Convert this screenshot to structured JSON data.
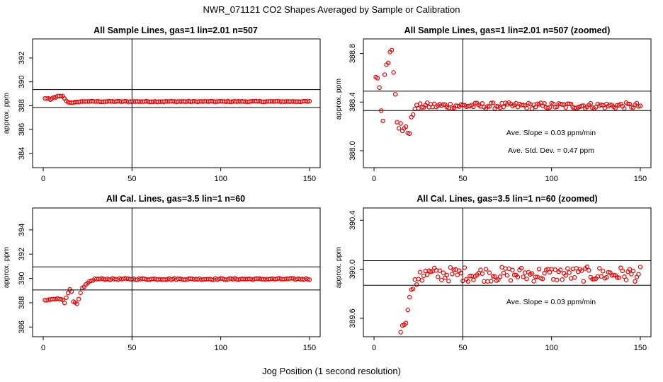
{
  "figure": {
    "title": "NWR_071121  CO2 Shapes Averaged by Sample or Calibration",
    "xlabel": "Jog Position (1 second resolution)",
    "point_color": "#ee0000",
    "line_color": "#000000"
  },
  "chart_data": [
    {
      "type": "scatter",
      "title": "All Sample Lines, gas=1 lin=2.01 n=507",
      "ylabel": "approx. ppm",
      "xlim": [
        -6,
        156
      ],
      "ylim": [
        382.8,
        393.6
      ],
      "xticks": [
        0,
        50,
        100,
        150
      ],
      "xtick_labels": [
        "0",
        "50",
        "100",
        "150"
      ],
      "yticks": [
        384,
        386,
        388,
        390,
        392
      ],
      "ytick_labels": [
        "384",
        "386",
        "388",
        "390",
        "392"
      ],
      "hlines": [
        389.35,
        387.85
      ],
      "vline": 50,
      "annotations": [],
      "series": [
        {
          "name": "sample",
          "x": [],
          "y": [],
          "pattern": {
            "x_start": 1,
            "x_end": 150,
            "plateau": 388.35,
            "early": [
              388.6,
              388.6,
              388.6,
              388.5,
              388.6,
              388.7,
              388.7,
              388.8,
              388.8,
              388.8,
              388.8,
              388.6,
              388.4,
              388.3,
              388.25,
              388.25,
              388.25,
              388.3,
              388.3,
              388.3,
              388.35,
              388.35,
              388.35,
              388.35,
              388.35,
              388.35
            ],
            "noise": 0.03
          }
        }
      ]
    },
    {
      "type": "scatter",
      "title": "All Sample Lines, gas=1 lin=2.01 n=507 (zoomed)",
      "ylabel": "approx. ppm",
      "xlim": [
        -6,
        156
      ],
      "ylim": [
        387.86,
        388.92
      ],
      "xticks": [
        0,
        50,
        100,
        150
      ],
      "xtick_labels": [
        "0",
        "50",
        "100",
        "150"
      ],
      "yticks": [
        388.0,
        388.4,
        388.8
      ],
      "ytick_labels": [
        "388.0",
        "388.4",
        "388.8"
      ],
      "hlines": [
        388.49,
        388.33
      ],
      "vline": 50,
      "annotations": [
        "Ave. Slope =  0.03  ppm/min",
        "Ave. Std. Dev. =  0.47  ppm"
      ],
      "series": [
        {
          "name": "sample",
          "x": [],
          "y": [],
          "pattern": {
            "x_start": 1,
            "x_end": 150,
            "plateau": 388.37,
            "early": [
              388.6,
              388.6,
              388.52,
              388.33,
              388.25,
              388.62,
              388.71,
              388.73,
              388.81,
              388.83,
              388.65,
              388.47,
              388.24,
              388.19,
              388.22,
              388.16,
              388.18,
              388.2,
              388.15,
              388.14,
              388.27,
              388.3,
              388.35,
              388.37,
              388.35,
              388.38
            ],
            "noise": 0.025
          }
        }
      ]
    },
    {
      "type": "scatter",
      "title": "All Cal. Lines, gas=3.5 lin=1 n=60",
      "ylabel": "approx. ppm",
      "xlim": [
        -6,
        156
      ],
      "ylim": [
        385.2,
        395.8
      ],
      "xticks": [
        0,
        50,
        100,
        150
      ],
      "xtick_labels": [
        "0",
        "50",
        "100",
        "150"
      ],
      "yticks": [
        386,
        388,
        390,
        392,
        394
      ],
      "ytick_labels": [
        "386",
        "388",
        "390",
        "392",
        "394"
      ],
      "hlines": [
        390.95,
        389.05
      ],
      "vline": 50,
      "annotations": [],
      "series": [
        {
          "name": "cal",
          "x": [],
          "y": [],
          "pattern": {
            "x_start": 1,
            "x_end": 150,
            "plateau": 389.95,
            "early": [
              388.2,
              388.2,
              388.25,
              388.25,
              388.3,
              388.3,
              388.3,
              388.35,
              388.3,
              388.3,
              388.25,
              388.0,
              388.4,
              388.8,
              389.1,
              388.95,
              388.1,
              388.0,
              387.9,
              388.3,
              388.8,
              389.2,
              389.3,
              389.5,
              389.6,
              389.75,
              389.8,
              389.85
            ],
            "noise": 0.06
          }
        }
      ]
    },
    {
      "type": "scatter",
      "title": "All Cal. Lines, gas=3.5 lin=1 n=60 (zoomed)",
      "ylabel": "approx. ppm",
      "xlim": [
        -6,
        156
      ],
      "ylim": [
        389.45,
        390.5
      ],
      "xticks": [
        0,
        50,
        100,
        150
      ],
      "xtick_labels": [
        "0",
        "50",
        "100",
        "150"
      ],
      "yticks": [
        389.6,
        390.0,
        390.4
      ],
      "ytick_labels": [
        "389.6",
        "390.0",
        "390.4"
      ],
      "hlines": [
        390.07,
        389.87
      ],
      "vline": 50,
      "annotations": [
        "Ave. Slope =  0.03  ppm/min"
      ],
      "series": [
        {
          "name": "cal",
          "x": [],
          "y": [],
          "pattern": {
            "x_start": 15,
            "x_end": 150,
            "plateau": 389.96,
            "early": [
              389.5,
              389.53,
              389.56,
              389.58,
              389.66,
              389.78,
              389.82,
              389.85,
              389.9,
              389.88,
              389.93,
              389.98,
              389.92
            ],
            "noise": 0.06
          }
        }
      ]
    }
  ]
}
